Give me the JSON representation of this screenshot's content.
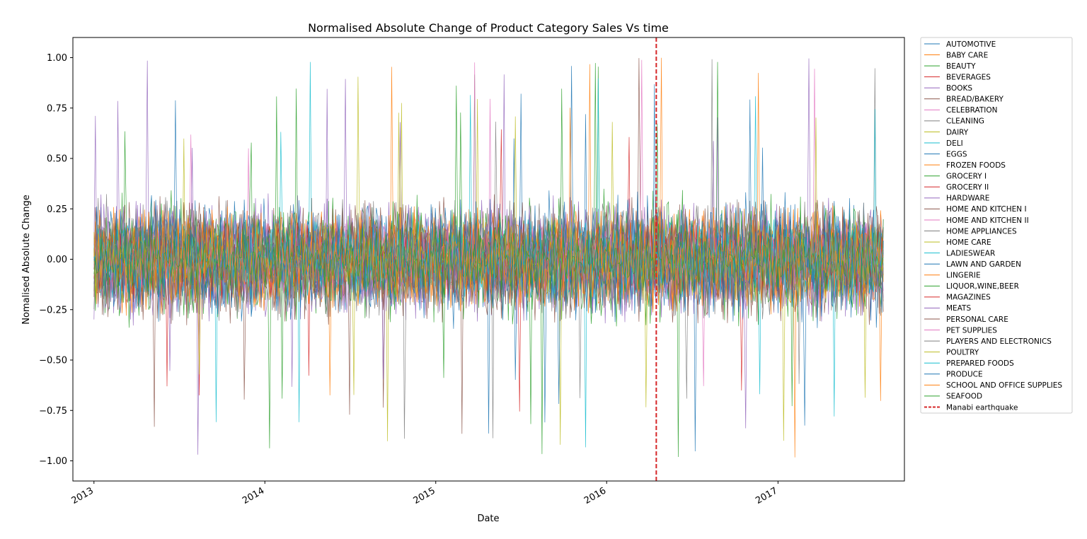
{
  "chart_data": {
    "type": "line",
    "title": "Normalised Absolute Change of Product Category Sales Vs time",
    "xlabel": "Date",
    "ylabel": "Nomalised Absolute Change",
    "x_start": "2013-01-01",
    "x_end": "2017-08-15",
    "xlim": [
      "2012-11-17",
      "2017-09-28"
    ],
    "ylim": [
      -1.1,
      1.1
    ],
    "x_ticks": [
      "2013",
      "2014",
      "2015",
      "2016",
      "2017"
    ],
    "x_tick_dates": [
      "2013-01-01",
      "2014-01-01",
      "2015-01-01",
      "2016-01-01",
      "2017-01-01"
    ],
    "y_ticks": [
      -1.0,
      -0.75,
      -0.5,
      -0.25,
      0.0,
      0.25,
      0.5,
      0.75,
      1.0
    ],
    "y_tick_labels": [
      "−1.00",
      "−0.75",
      "−0.50",
      "−0.25",
      "0.00",
      "0.25",
      "0.50",
      "0.75",
      "1.00"
    ],
    "grid": false,
    "legend_position": "outside-right",
    "series": [
      {
        "name": "AUTOMOTIVE",
        "color": "#1f77b4"
      },
      {
        "name": "BABY CARE",
        "color": "#ff7f0e"
      },
      {
        "name": "BEAUTY",
        "color": "#2ca02c"
      },
      {
        "name": "BEVERAGES",
        "color": "#d62728"
      },
      {
        "name": "BOOKS",
        "color": "#9467bd"
      },
      {
        "name": "BREAD/BAKERY",
        "color": "#8c564b"
      },
      {
        "name": "CELEBRATION",
        "color": "#e377c2"
      },
      {
        "name": "CLEANING",
        "color": "#7f7f7f"
      },
      {
        "name": "DAIRY",
        "color": "#bcbd22"
      },
      {
        "name": "DELI",
        "color": "#17becf"
      },
      {
        "name": "EGGS",
        "color": "#1f77b4"
      },
      {
        "name": "FROZEN FOODS",
        "color": "#ff7f0e"
      },
      {
        "name": "GROCERY I",
        "color": "#2ca02c"
      },
      {
        "name": "GROCERY II",
        "color": "#d62728"
      },
      {
        "name": "HARDWARE",
        "color": "#9467bd"
      },
      {
        "name": "HOME AND KITCHEN I",
        "color": "#8c564b"
      },
      {
        "name": "HOME AND KITCHEN II",
        "color": "#e377c2"
      },
      {
        "name": "HOME APPLIANCES",
        "color": "#7f7f7f"
      },
      {
        "name": "HOME CARE",
        "color": "#bcbd22"
      },
      {
        "name": "LADIESWEAR",
        "color": "#17becf"
      },
      {
        "name": "LAWN AND GARDEN",
        "color": "#1f77b4"
      },
      {
        "name": "LINGERIE",
        "color": "#ff7f0e"
      },
      {
        "name": "LIQUOR,WINE,BEER",
        "color": "#2ca02c"
      },
      {
        "name": "MAGAZINES",
        "color": "#d62728"
      },
      {
        "name": "MEATS",
        "color": "#9467bd"
      },
      {
        "name": "PERSONAL CARE",
        "color": "#8c564b"
      },
      {
        "name": "PET SUPPLIES",
        "color": "#e377c2"
      },
      {
        "name": "PLAYERS AND ELECTRONICS",
        "color": "#7f7f7f"
      },
      {
        "name": "POULTRY",
        "color": "#bcbd22"
      },
      {
        "name": "PREPARED FOODS",
        "color": "#17becf"
      },
      {
        "name": "PRODUCE",
        "color": "#1f77b4"
      },
      {
        "name": "SCHOOL AND OFFICE SUPPLIES",
        "color": "#ff7f0e"
      },
      {
        "name": "SEAFOOD",
        "color": "#2ca02c"
      }
    ],
    "annotations": [
      {
        "type": "vline",
        "date": "2016-04-16",
        "name": "Manabi earthquake",
        "color": "#d62728",
        "style": "dashed"
      }
    ]
  }
}
